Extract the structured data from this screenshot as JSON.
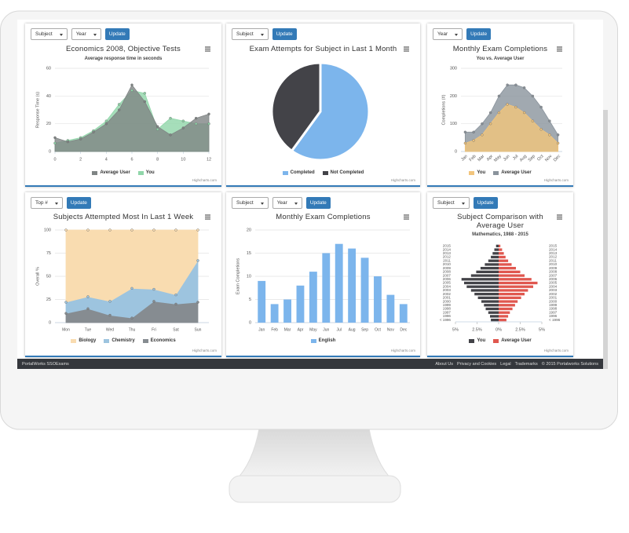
{
  "panels": [
    {
      "controls": [
        "Subject",
        "Year"
      ],
      "button": "Update"
    },
    {
      "controls": [
        "Subject"
      ],
      "button": "Update"
    },
    {
      "controls": [
        "Year"
      ],
      "button": "Update"
    },
    {
      "controls": [
        "Top #"
      ],
      "button": "Update"
    },
    {
      "controls": [
        "Subject",
        "Year"
      ],
      "button": "Update"
    },
    {
      "controls": [
        "Subject"
      ],
      "button": "Update"
    }
  ],
  "footer": {
    "brand": "PortalWorks SSOExams",
    "links": [
      "About Us",
      "Privacy and Cookies",
      "Legal",
      "Trademarks"
    ],
    "copyright": "© 2015 Portalworks Solutions"
  },
  "chart_data": [
    {
      "type": "area",
      "title": "Economics 2008, Objective Tests",
      "subtitle": "Average response time in seconds",
      "y_label": "Response Time (s)",
      "x": [
        0,
        1,
        2,
        3,
        4,
        5,
        6,
        7,
        8,
        9,
        10,
        11,
        12
      ],
      "xlim": [
        0,
        12
      ],
      "xticks": [
        0,
        2,
        4,
        6,
        8,
        10,
        12
      ],
      "ylim": [
        0,
        60
      ],
      "yticks": [
        0,
        20,
        40,
        60
      ],
      "grid": true,
      "series": [
        {
          "name": "Average User",
          "color": "#7f8484",
          "values": [
            10,
            7,
            9,
            14,
            20,
            30,
            48,
            36,
            18,
            12,
            17,
            24,
            27
          ]
        },
        {
          "name": "You",
          "color": "#90d6a9",
          "values": [
            6,
            8,
            10,
            15,
            22,
            34,
            44,
            42,
            16,
            24,
            22,
            20,
            20
          ]
        }
      ],
      "credits": "Highcharts.com"
    },
    {
      "type": "pie",
      "title": "Exam Attempts for Subject in Last 1 Month",
      "categories": [
        "Completed",
        "Not Completed"
      ],
      "values": [
        60,
        40
      ],
      "colors": [
        "#7cb5ec",
        "#434348"
      ],
      "credits": "Highcharts.com"
    },
    {
      "type": "area",
      "title": "Monthly Exam Completions",
      "subtitle": "You vs. Average User",
      "y_label": "Completions (#)",
      "categories": [
        "Jan",
        "Feb",
        "Mar",
        "Apr",
        "May",
        "Jun",
        "Jul",
        "Aug",
        "Sep",
        "Oct",
        "Nov",
        "Dec"
      ],
      "x_label_rotation": -45,
      "ylim": [
        0,
        300
      ],
      "yticks": [
        0,
        100,
        200,
        300
      ],
      "grid": true,
      "series": [
        {
          "name": "You",
          "color": "#f2c57c",
          "values": [
            30,
            40,
            60,
            100,
            140,
            170,
            160,
            140,
            110,
            80,
            60,
            30
          ]
        },
        {
          "name": "Average User",
          "color": "#8a939c",
          "values": [
            70,
            70,
            100,
            140,
            200,
            240,
            240,
            230,
            200,
            160,
            110,
            60
          ]
        }
      ],
      "credits": "Highcharts.com"
    },
    {
      "type": "area",
      "stacked": true,
      "title": "Subjects Attempted Most In Last 1 Week",
      "y_label": "Overall %",
      "categories": [
        "Mon",
        "Tue",
        "Wed",
        "Thu",
        "Fri",
        "Sat",
        "Sun"
      ],
      "ylim": [
        0,
        100
      ],
      "yticks": [
        0,
        25,
        50,
        75,
        100
      ],
      "grid": true,
      "series": [
        {
          "name": "Biology",
          "color": "#f9dcb0",
          "values": [
            78,
            72,
            77,
            63,
            64,
            70,
            33
          ]
        },
        {
          "name": "Chemistry",
          "color": "#9dc4df",
          "values": [
            12,
            13,
            15,
            32,
            13,
            10,
            45
          ]
        },
        {
          "name": "Economics",
          "color": "#868c91",
          "values": [
            10,
            15,
            8,
            5,
            23,
            20,
            22
          ]
        }
      ],
      "credits": "Highcharts.com"
    },
    {
      "type": "bar",
      "title": "Monthly Exam Completions",
      "y_label": "Exam Completions",
      "categories": [
        "Jan",
        "Feb",
        "Mar",
        "Apr",
        "May",
        "Jun",
        "Jul",
        "Aug",
        "Sep",
        "Oct",
        "Nov",
        "Dec"
      ],
      "ylim": [
        0,
        20
      ],
      "yticks": [
        0,
        5,
        10,
        15,
        20
      ],
      "grid": true,
      "series": [
        {
          "name": "English",
          "color": "#7cb5ec",
          "values": [
            9,
            4,
            5,
            8,
            11,
            15,
            17,
            16,
            14,
            10,
            6,
            4
          ]
        }
      ],
      "credits": "Highcharts.com"
    },
    {
      "type": "pyramid",
      "title": "Subject Comparison with Average User",
      "subtitle": "Mathematics, 1988 - 2015",
      "categories": [
        "2015",
        "2014",
        "2013",
        "2012",
        "2011",
        "2010",
        "2009",
        "2008",
        "2007",
        "2006",
        "2005",
        "2004",
        "2003",
        "2002",
        "2001",
        "2000",
        "1999",
        "1998",
        "1997",
        "1996",
        "< 1996"
      ],
      "xlim": [
        -5,
        5
      ],
      "xticks": [
        {
          "value": -5,
          "label": "5%"
        },
        {
          "value": -2.5,
          "label": "2.5%"
        },
        {
          "value": 0,
          "label": "0%"
        },
        {
          "value": 2.5,
          "label": "2.5%"
        },
        {
          "value": 5,
          "label": "5%"
        }
      ],
      "series": [
        {
          "name": "You",
          "color": "#434348",
          "values": [
            -0.3,
            -0.5,
            -0.7,
            -0.9,
            -1.2,
            -1.6,
            -2.1,
            -2.6,
            -3.2,
            -4.3,
            -4.0,
            -3.7,
            -3.2,
            -2.8,
            -2.4,
            -2.0,
            -1.7,
            -1.5,
            -1.2,
            -1.0,
            -0.9
          ]
        },
        {
          "name": "Average User",
          "color": "#e0574f",
          "values": [
            0.2,
            0.4,
            0.6,
            0.8,
            1.1,
            1.5,
            2.0,
            2.5,
            3.0,
            3.8,
            4.5,
            4.0,
            3.4,
            3.0,
            2.6,
            2.2,
            1.9,
            1.6,
            1.3,
            1.1,
            0.9
          ]
        }
      ],
      "credits": "Highcharts.com"
    }
  ]
}
